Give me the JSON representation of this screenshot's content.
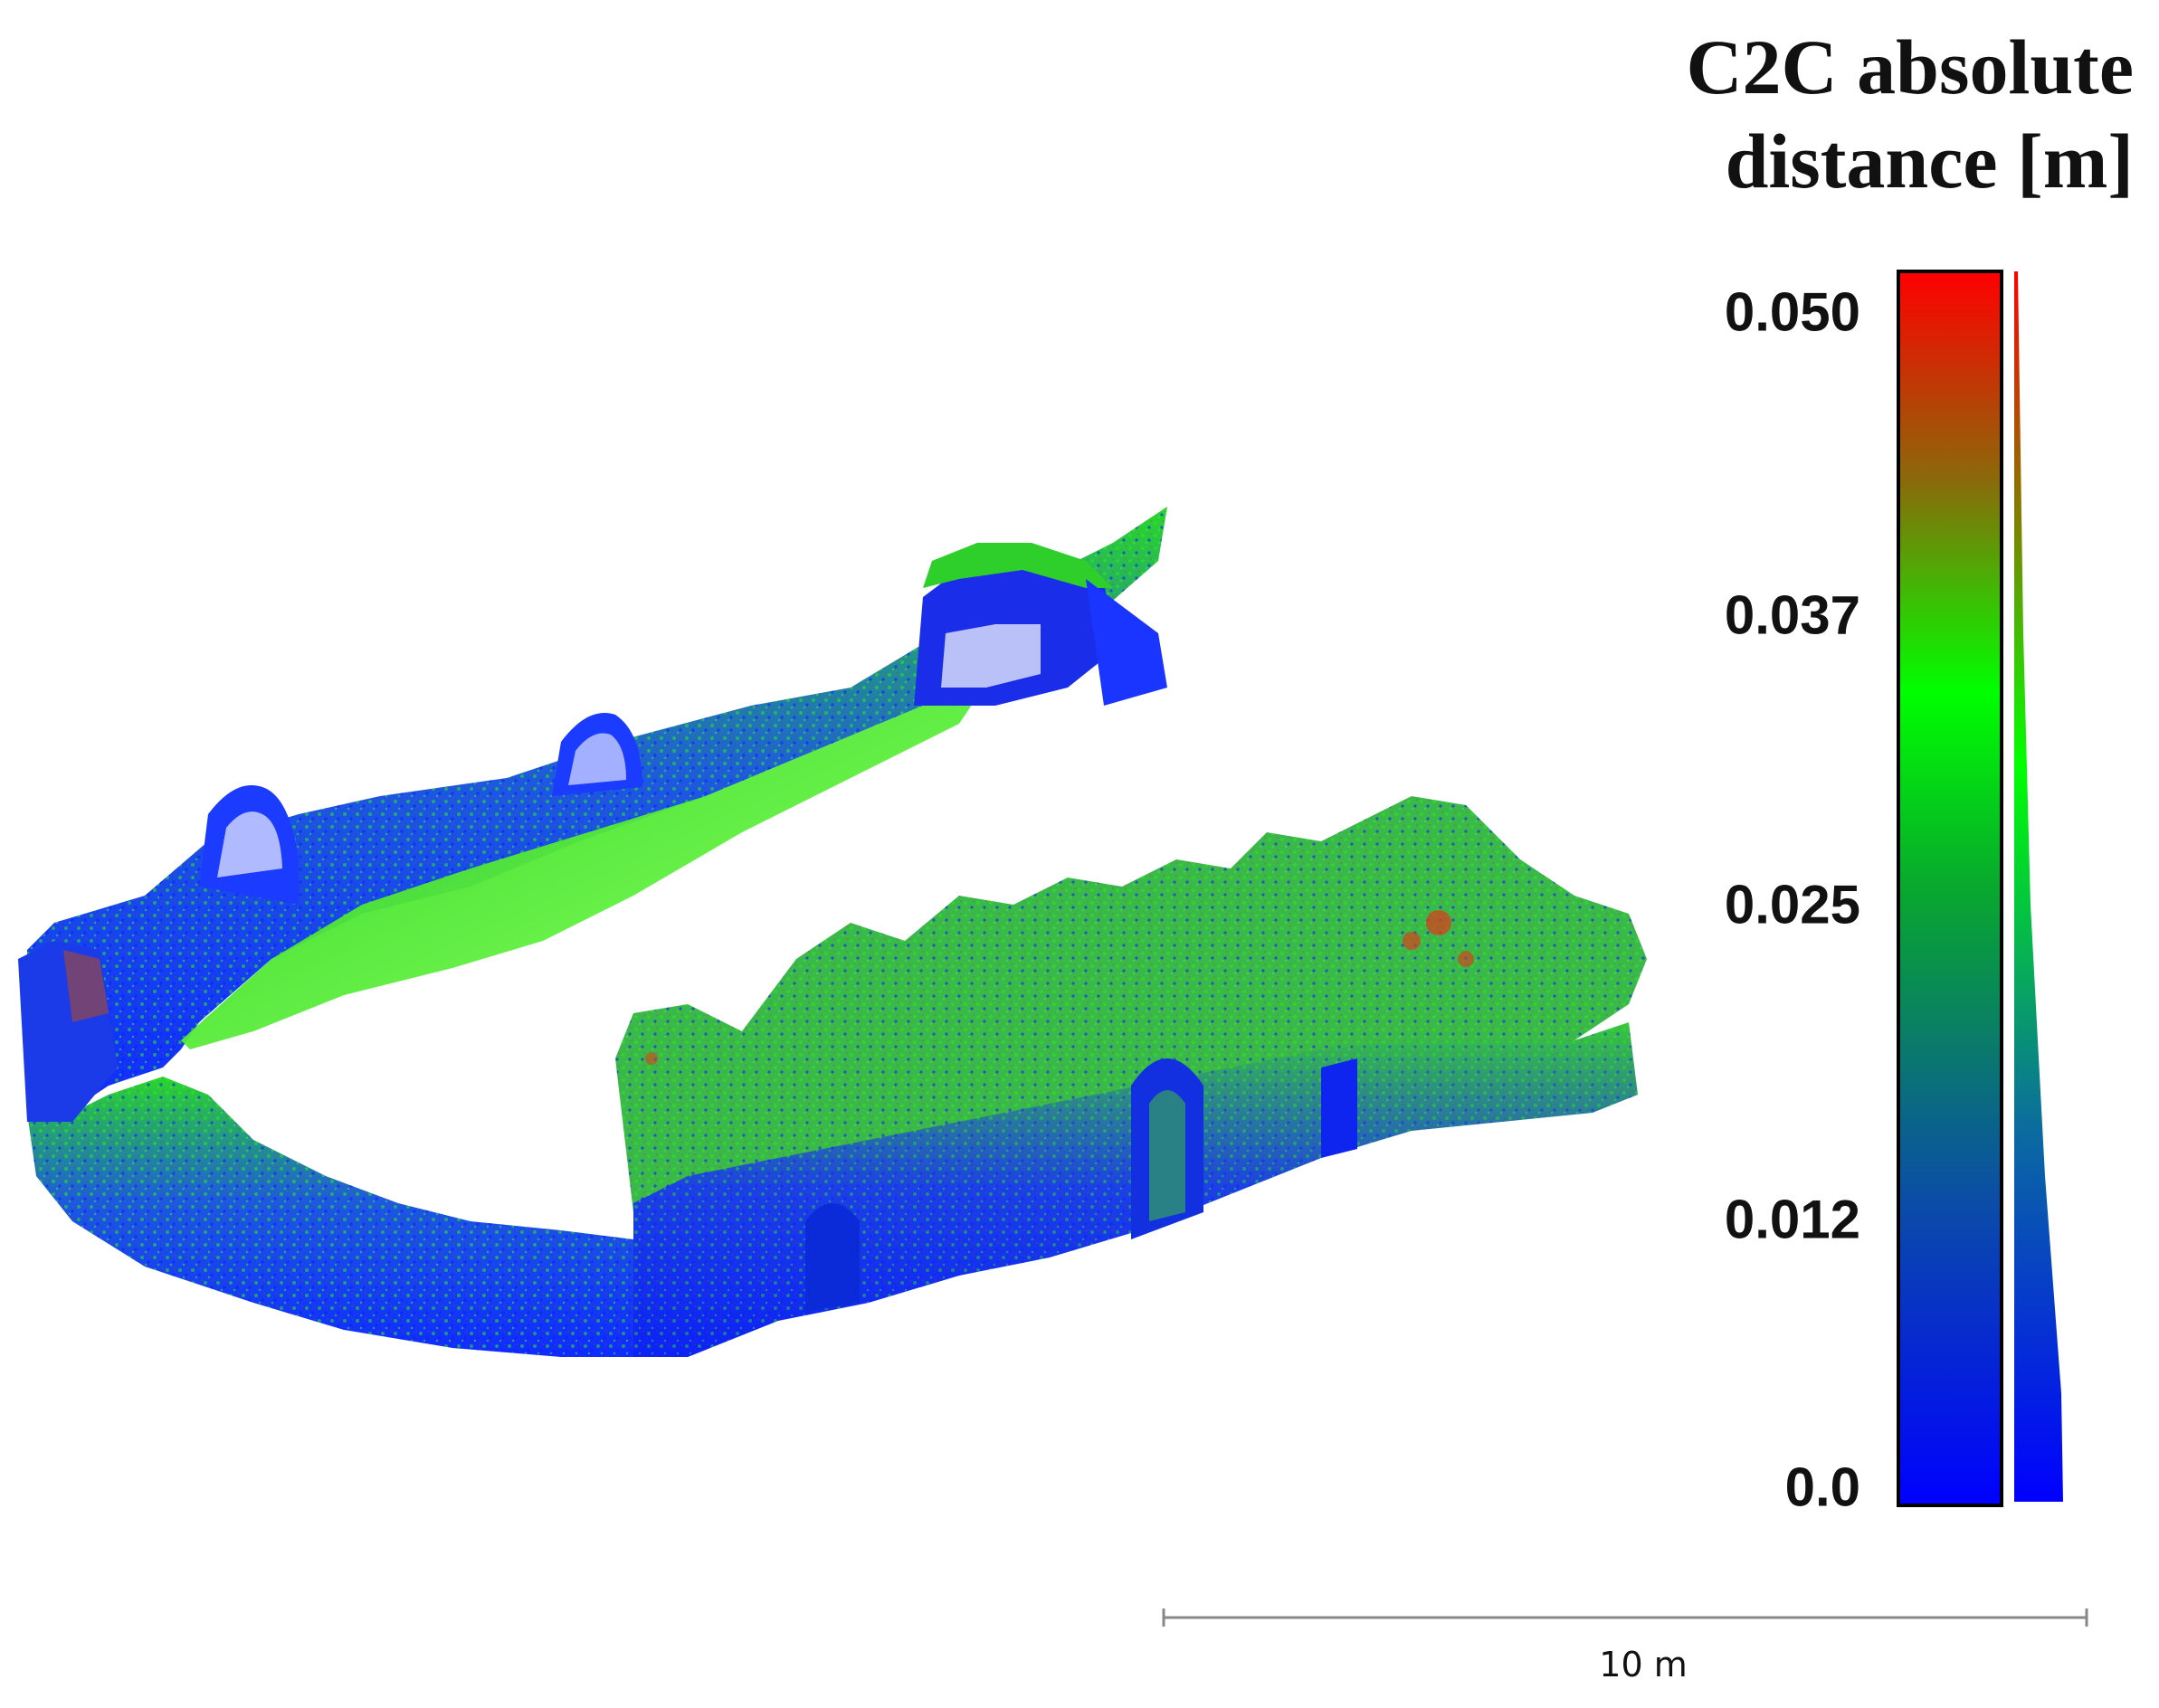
{
  "legend": {
    "title_line1": "C2C absolute",
    "title_line2": "distance [m]",
    "ticks": [
      "0.050",
      "0.037",
      "0.025",
      "0.012",
      "0.0"
    ],
    "colormap": [
      "#0000ff",
      "#0a55a0",
      "#00ff00",
      "#9b5a0a",
      "#ff0000"
    ]
  },
  "scalebar": {
    "label": "10 m"
  },
  "point_cloud": {
    "subject": "ruined-church-wall-point-cloud",
    "dominant_colors": [
      "#1a2bff",
      "#2ad21a",
      "#5ae83a",
      "#c83218"
    ]
  }
}
